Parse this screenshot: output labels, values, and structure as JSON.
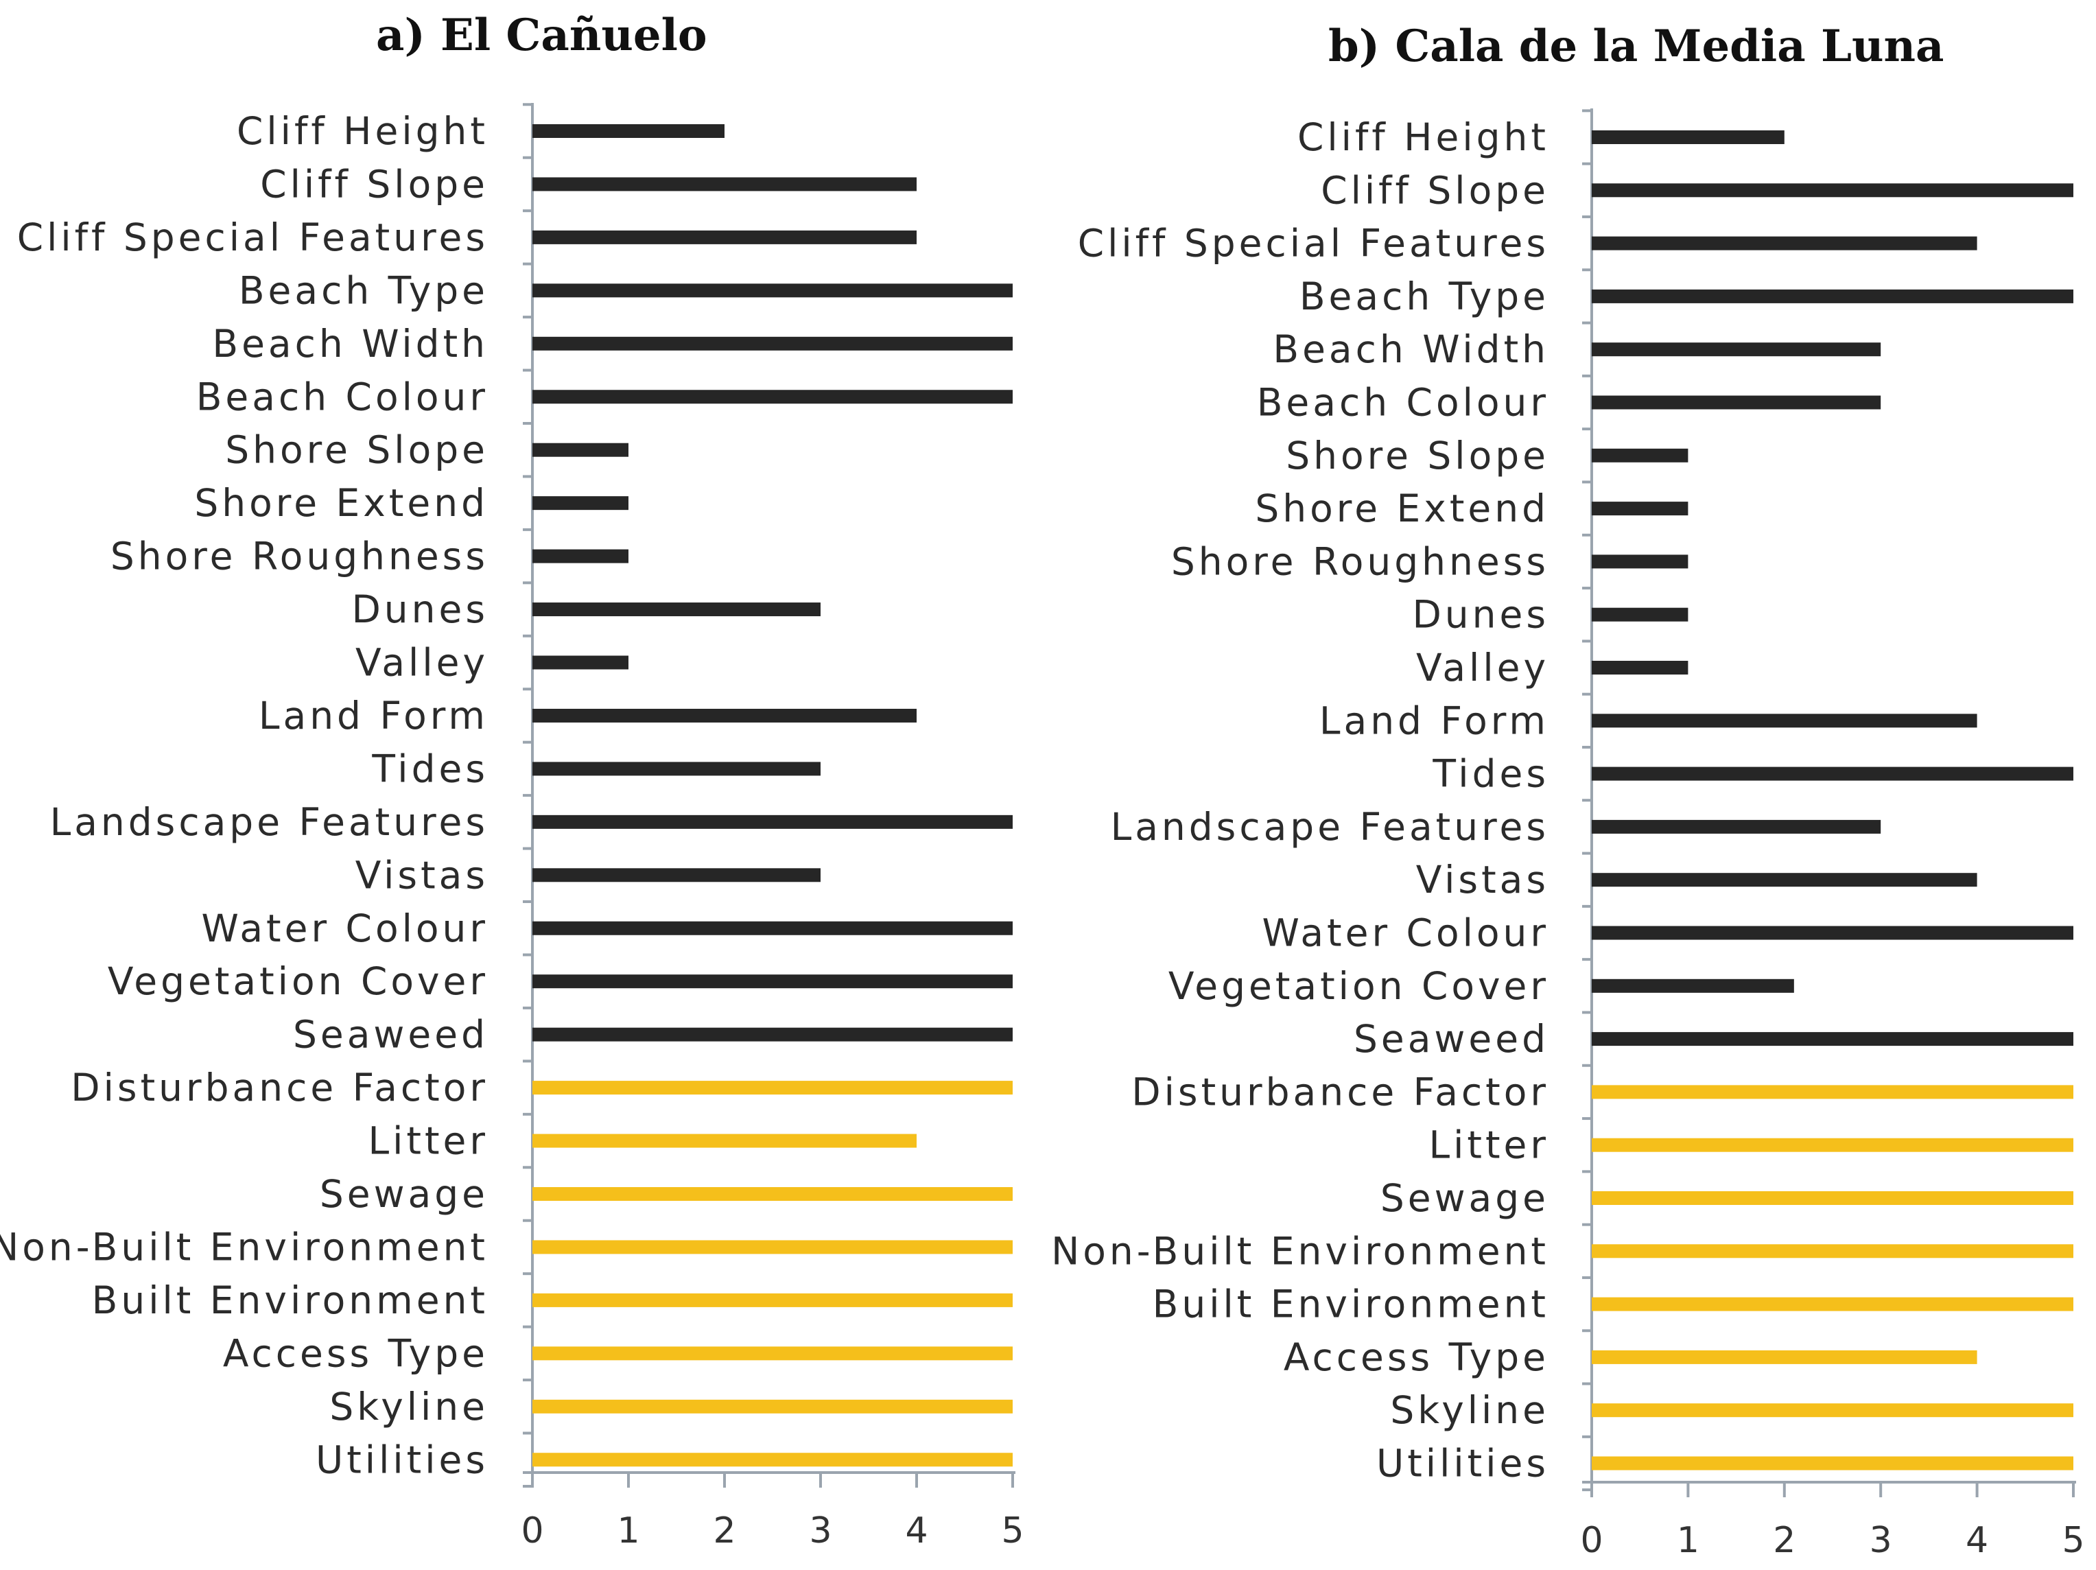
{
  "chart_data": [
    {
      "type": "bar",
      "orientation": "horizontal",
      "title": "a) El Cañuelo",
      "categories": [
        "Cliff Height",
        "Cliff Slope",
        "Cliff Special Features",
        "Beach Type",
        "Beach Width",
        "Beach Colour",
        "Shore Slope",
        "Shore Extend",
        "Shore Roughness",
        "Dunes",
        "Valley",
        "Land Form",
        "Tides",
        "Landscape Features",
        "Vistas",
        "Water Colour",
        "Vegetation Cover",
        "Seaweed",
        "Disturbance Factor",
        "Litter",
        "Sewage",
        "Non-Built Environment",
        "Built Environment",
        "Access Type",
        "Skyline",
        "Utilities"
      ],
      "values": [
        2,
        4,
        4,
        5,
        5,
        5,
        1,
        1,
        1,
        3,
        1,
        4,
        3,
        5,
        3,
        5,
        5,
        5,
        5,
        4,
        5,
        5,
        5,
        5,
        5,
        5
      ],
      "groups": [
        "physical",
        "physical",
        "physical",
        "physical",
        "physical",
        "physical",
        "physical",
        "physical",
        "physical",
        "physical",
        "physical",
        "physical",
        "physical",
        "physical",
        "physical",
        "physical",
        "physical",
        "physical",
        "human",
        "human",
        "human",
        "human",
        "human",
        "human",
        "human",
        "human"
      ],
      "colors": {
        "physical": "#262626",
        "human": "#f5bf1b"
      },
      "xlim": [
        0,
        5
      ],
      "xticks": [
        0,
        1,
        2,
        3,
        4,
        5
      ],
      "xlabel": "",
      "ylabel": ""
    },
    {
      "type": "bar",
      "orientation": "horizontal",
      "title": "b) Cala de la Media Luna",
      "categories": [
        "Cliff Height",
        "Cliff Slope",
        "Cliff Special Features",
        "Beach Type",
        "Beach Width",
        "Beach Colour",
        "Shore Slope",
        "Shore Extend",
        "Shore Roughness",
        "Dunes",
        "Valley",
        "Land Form",
        "Tides",
        "Landscape Features",
        "Vistas",
        "Water Colour",
        "Vegetation Cover",
        "Seaweed",
        "Disturbance Factor",
        "Litter",
        "Sewage",
        "Non-Built Environment",
        "Built Environment",
        "Access Type",
        "Skyline",
        "Utilities"
      ],
      "values": [
        2,
        5,
        4,
        5,
        3,
        3,
        1,
        1,
        1,
        1,
        1,
        4,
        5,
        3,
        4,
        5,
        2.1,
        5,
        5,
        5,
        5,
        5,
        5,
        4,
        5,
        5
      ],
      "groups": [
        "physical",
        "physical",
        "physical",
        "physical",
        "physical",
        "physical",
        "physical",
        "physical",
        "physical",
        "physical",
        "physical",
        "physical",
        "physical",
        "physical",
        "physical",
        "physical",
        "physical",
        "physical",
        "human",
        "human",
        "human",
        "human",
        "human",
        "human",
        "human",
        "human"
      ],
      "colors": {
        "physical": "#262626",
        "human": "#f5bf1b"
      },
      "xlim": [
        0,
        5
      ],
      "xticks": [
        0,
        1,
        2,
        3,
        4,
        5
      ],
      "xlabel": "",
      "ylabel": ""
    }
  ]
}
